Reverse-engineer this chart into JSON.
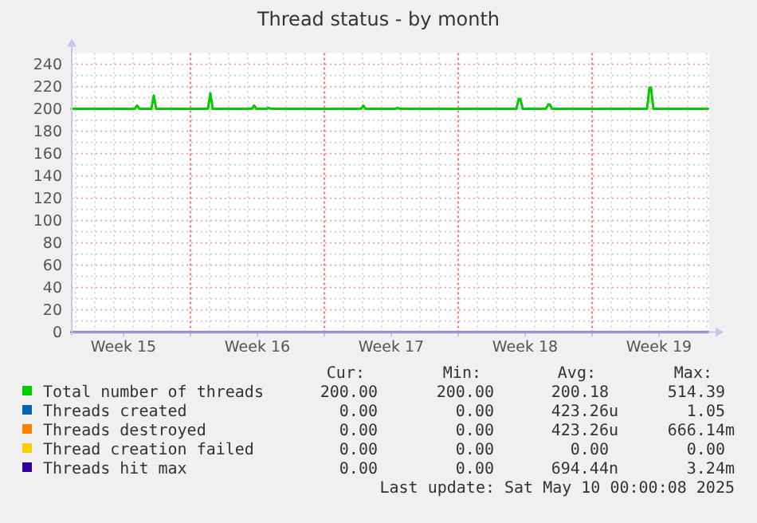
{
  "chart_data": {
    "type": "line",
    "title": "Thread status - by month",
    "xlim": [
      "2025-04-07T19:00",
      "2025-05-11T03:00"
    ],
    "xticks": [
      {
        "value": "2025-04-10T12:00",
        "label": "Week 15"
      },
      {
        "value": "2025-04-14T00:00",
        "label": null
      },
      {
        "value": "2025-04-17T12:00",
        "label": "Week 16"
      },
      {
        "value": "2025-04-21T00:00",
        "label": null
      },
      {
        "value": "2025-04-24T12:00",
        "label": "Week 17"
      },
      {
        "value": "2025-04-28T00:00",
        "label": null
      },
      {
        "value": "2025-05-01T12:00",
        "label": "Week 18"
      },
      {
        "value": "2025-05-05T00:00",
        "label": null
      },
      {
        "value": "2025-05-08T12:00",
        "label": "Week 19"
      }
    ],
    "ylim": [
      0,
      250
    ],
    "yticks": [
      0,
      20,
      40,
      60,
      80,
      100,
      120,
      140,
      160,
      180,
      200,
      220,
      240
    ],
    "grid": true,
    "legend": "bottom",
    "marker": "none",
    "line_style": "solid",
    "series": [
      {
        "name": "Total number of threads",
        "color": "#00cc00",
        "x": [
          "2025-04-07T19:00",
          "2025-04-11T02:00",
          "2025-04-11T05:00",
          "2025-04-11T08:00",
          "2025-04-11T23:00",
          "2025-04-12T02:00",
          "2025-04-12T05:00",
          "2025-04-14T22:00",
          "2025-04-15T01:00",
          "2025-04-15T04:00",
          "2025-04-17T05:00",
          "2025-04-17T08:00",
          "2025-04-17T11:00",
          "2025-04-17T23:00",
          "2025-04-18T02:00",
          "2025-04-18T05:00",
          "2025-04-22T22:00",
          "2025-04-23T01:00",
          "2025-04-23T04:00",
          "2025-04-24T17:00",
          "2025-04-24T20:00",
          "2025-04-24T23:00",
          "2025-05-01T01:00",
          "2025-05-01T04:00",
          "2025-05-01T06:00",
          "2025-05-01T09:00",
          "2025-05-02T14:00",
          "2025-05-02T17:00",
          "2025-05-02T19:00",
          "2025-05-02T22:00",
          "2025-05-07T21:00",
          "2025-05-08T00:00",
          "2025-05-08T02:00",
          "2025-05-08T05:00",
          "2025-05-11T01:00"
        ],
        "values": [
          200,
          200,
          203,
          200,
          200,
          212,
          200,
          200,
          214,
          200,
          200,
          203,
          200,
          200,
          201,
          200,
          200,
          203,
          200,
          200,
          201,
          200,
          200,
          209,
          209,
          200,
          200,
          204,
          204,
          200,
          200,
          219,
          219,
          200,
          200
        ]
      },
      {
        "name": "Threads created",
        "color": "#0066b3",
        "values": [
          null,
          null
        ]
      },
      {
        "name": "Threads destroyed",
        "color": "#ff8000",
        "values": [
          null,
          null
        ]
      },
      {
        "name": "Thread creation failed",
        "color": "#ffcc00",
        "values": [
          null,
          null
        ]
      },
      {
        "name": "Threads hit max",
        "color": "#330099",
        "x": [
          "2025-04-07T19:00",
          "2025-05-11T01:00"
        ],
        "values": [
          0,
          0
        ]
      }
    ],
    "annotations": [
      "Cur:",
      "Min:",
      "Avg:",
      "Max:",
      "200.00",
      "200.00",
      "200.18",
      "514.39",
      "0.00",
      "0.00",
      "423.26u",
      "1.05",
      "0.00",
      "0.00",
      "423.26u",
      "666.14m",
      "0.00",
      "0.00",
      "0.00",
      "0.00",
      "0.00",
      "0.00",
      "694.44n",
      "3.24m",
      "Last update: Sat May 10 00:00:08 2025"
    ]
  }
}
